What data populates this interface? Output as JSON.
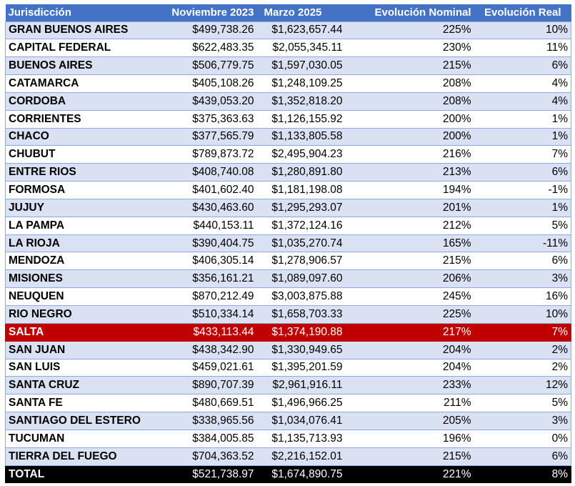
{
  "table": {
    "headers": {
      "jurisdiccion": "Jurisdicción",
      "noviembre": "Noviembre 2023",
      "marzo": "Marzo 2025",
      "nominal": "Evolución Nominal",
      "real": "Evolución Real"
    },
    "rows": [
      {
        "name": "GRAN BUENOS AIRES",
        "nov": "$499,738.26",
        "mar": "$1,623,657.44",
        "nominal": "225%",
        "real": "10%"
      },
      {
        "name": "CAPITAL FEDERAL",
        "nov": "$622,483.35",
        "mar": "$2,055,345.11",
        "nominal": "230%",
        "real": "11%"
      },
      {
        "name": "BUENOS AIRES",
        "nov": "$506,779.75",
        "mar": "$1,597,030.05",
        "nominal": "215%",
        "real": "6%"
      },
      {
        "name": "CATAMARCA",
        "nov": "$405,108.26",
        "mar": "$1,248,109.25",
        "nominal": "208%",
        "real": "4%"
      },
      {
        "name": "CORDOBA",
        "nov": "$439,053.20",
        "mar": "$1,352,818.20",
        "nominal": "208%",
        "real": "4%"
      },
      {
        "name": "CORRIENTES",
        "nov": "$375,363.63",
        "mar": "$1,126,155.92",
        "nominal": "200%",
        "real": "1%"
      },
      {
        "name": "CHACO",
        "nov": "$377,565.79",
        "mar": "$1,133,805.58",
        "nominal": "200%",
        "real": "1%"
      },
      {
        "name": "CHUBUT",
        "nov": "$789,873.72",
        "mar": "$2,495,904.23",
        "nominal": "216%",
        "real": "7%"
      },
      {
        "name": "ENTRE RIOS",
        "nov": "$408,740.08",
        "mar": "$1,280,891.80",
        "nominal": "213%",
        "real": "6%"
      },
      {
        "name": "FORMOSA",
        "nov": "$401,602.40",
        "mar": "$1,181,198.08",
        "nominal": "194%",
        "real": "-1%"
      },
      {
        "name": "JUJUY",
        "nov": "$430,463.60",
        "mar": "$1,295,293.07",
        "nominal": "201%",
        "real": "1%"
      },
      {
        "name": "LA PAMPA",
        "nov": "$440,153.11",
        "mar": "$1,372,124.16",
        "nominal": "212%",
        "real": "5%"
      },
      {
        "name": "LA RIOJA",
        "nov": "$390,404.75",
        "mar": "$1,035,270.74",
        "nominal": "165%",
        "real": "-11%"
      },
      {
        "name": "MENDOZA",
        "nov": "$406,305.14",
        "mar": "$1,278,906.57",
        "nominal": "215%",
        "real": "6%"
      },
      {
        "name": "MISIONES",
        "nov": "$356,161.21",
        "mar": "$1,089,097.60",
        "nominal": "206%",
        "real": "3%"
      },
      {
        "name": "NEUQUEN",
        "nov": "$870,212.49",
        "mar": "$3,003,875.88",
        "nominal": "245%",
        "real": "16%"
      },
      {
        "name": "RIO NEGRO",
        "nov": "$510,334.14",
        "mar": "$1,658,703.33",
        "nominal": "225%",
        "real": "10%"
      },
      {
        "name": "SALTA",
        "nov": "$433,113.44",
        "mar": "$1,374,190.88",
        "nominal": "217%",
        "real": "7%"
      },
      {
        "name": "SAN JUAN",
        "nov": "$438,342.90",
        "mar": "$1,330,949.65",
        "nominal": "204%",
        "real": "2%"
      },
      {
        "name": "SAN LUIS",
        "nov": "$459,021.61",
        "mar": "$1,395,201.59",
        "nominal": "204%",
        "real": "2%"
      },
      {
        "name": "SANTA CRUZ",
        "nov": "$890,707.39",
        "mar": "$2,961,916.11",
        "nominal": "233%",
        "real": "12%"
      },
      {
        "name": "SANTA FE",
        "nov": "$480,669.51",
        "mar": "$1,496,966.25",
        "nominal": "211%",
        "real": "5%"
      },
      {
        "name": "SANTIAGO DEL ESTERO",
        "nov": "$338,965.56",
        "mar": "$1,034,076.41",
        "nominal": "205%",
        "real": "3%"
      },
      {
        "name": "TUCUMAN",
        "nov": "$384,005.85",
        "mar": "$1,135,713.93",
        "nominal": "196%",
        "real": "0%"
      },
      {
        "name": "TIERRA DEL FUEGO",
        "nov": "$704,363.52",
        "mar": "$2,216,152.01",
        "nominal": "215%",
        "real": "6%"
      }
    ],
    "total": {
      "name": "TOTAL",
      "nov": "$521,738.97",
      "mar": "$1,674,890.75",
      "nominal": "221%",
      "real": "8%"
    },
    "highlight_row": "SALTA",
    "colors": {
      "header": "#4472c4",
      "band": "#d9e1f2",
      "highlight": "#c00000",
      "total": "#000000"
    }
  }
}
